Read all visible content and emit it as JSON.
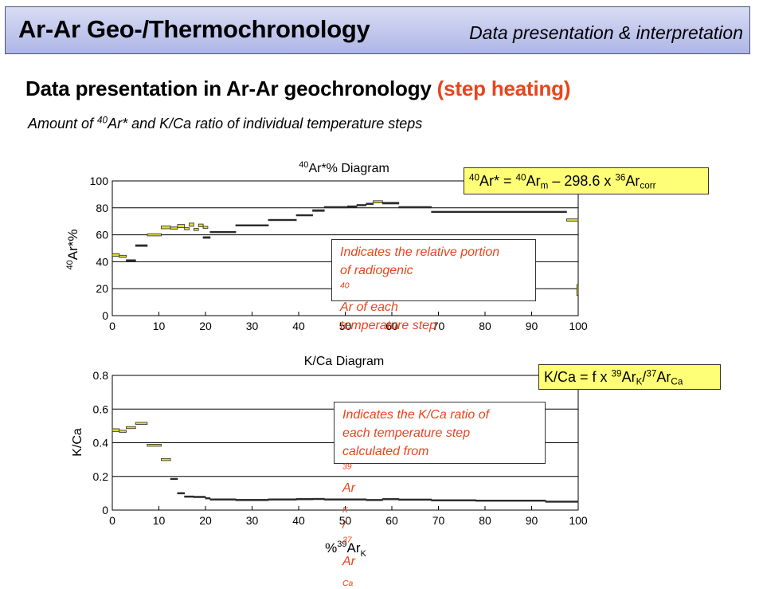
{
  "header": {
    "title": "Ar-Ar Geo-/Thermochronology",
    "subtitle": "Data presentation & interpretation"
  },
  "slide": {
    "heading_main": "Data presentation in Ar-Ar geochronology",
    "heading_highlight": "(step heating)",
    "subheading": {
      "pre": "Amount of ",
      "sup": "40",
      "post": "Ar* and K/Ca ratio of individual temperature steps"
    }
  },
  "colors": {
    "accent_red": "#e8451c",
    "banner_top": "#d8dcf4",
    "banner_bottom": "#aeb6e6",
    "formula_bg": "#ffff77",
    "step_fill": "#e0dd2a",
    "step_edge": "#2a2a2a"
  },
  "formula_ar": {
    "sup1": "40",
    "t1": "Ar* = ",
    "sup2": "40",
    "t2": "Ar",
    "sub1": "m",
    "t3": " – 298.6 x ",
    "sup3": "36",
    "t4": "Ar",
    "sub2": "corr"
  },
  "formula_kca": {
    "t1": "K/Ca = f x ",
    "sup1": "39",
    "t2": "Ar",
    "sub1": "K",
    "t3": "/",
    "sup2": "37",
    "t4": "Ar",
    "sub2": "Ca"
  },
  "note_ar": {
    "line1": "Indicates the relative portion",
    "line2_pre": "of radiogenic ",
    "line2_sup": "40",
    "line2_post": "Ar of each",
    "line3": "temperature step"
  },
  "note_kca": {
    "line1": "Indicates the K/Ca ratio of",
    "line2": "each temperature step",
    "line3_pre": "calculated from ",
    "line3_sup1": "39",
    "line3_mid": "Ar",
    "line3_sub1": "K",
    "line3_sep": " / ",
    "line3_sup2": "37",
    "line3_end": "Ar",
    "line3_sub2": "Ca"
  },
  "chart_data": [
    {
      "type": "step",
      "title": {
        "sup": "40",
        "text": "Ar*% Diagram"
      },
      "ylabel": {
        "sup": "40",
        "text": "Ar*%"
      },
      "xlabel": "",
      "xlim": [
        0,
        100
      ],
      "ylim": [
        0,
        100
      ],
      "xticks": [
        0,
        10,
        20,
        30,
        40,
        50,
        60,
        70,
        80,
        90,
        100
      ],
      "yticks": [
        0,
        20,
        40,
        60,
        80,
        100
      ],
      "ytick_labels": [
        "0",
        "20",
        "40",
        "60",
        "80",
        "100"
      ],
      "grid": "horizontal",
      "series": [
        {
          "steps": [
            {
              "x0": 0.0,
              "x1": 1.5,
              "y": 45.0,
              "err": 1.0
            },
            {
              "x0": 1.5,
              "x1": 3.0,
              "y": 44.0,
              "err": 0.8
            },
            {
              "x0": 3.0,
              "x1": 5.0,
              "y": 41.0,
              "err": 0.5
            },
            {
              "x0": 5.0,
              "x1": 7.5,
              "y": 52.0,
              "err": 0.6
            },
            {
              "x0": 7.5,
              "x1": 10.5,
              "y": 60.0,
              "err": 0.8
            },
            {
              "x0": 10.5,
              "x1": 12.5,
              "y": 65.5,
              "err": 1.0
            },
            {
              "x0": 12.5,
              "x1": 14.0,
              "y": 65.0,
              "err": 0.8
            },
            {
              "x0": 14.0,
              "x1": 15.5,
              "y": 66.5,
              "err": 1.2
            },
            {
              "x0": 15.5,
              "x1": 16.5,
              "y": 64.5,
              "err": 0.8
            },
            {
              "x0": 16.5,
              "x1": 17.5,
              "y": 67.5,
              "err": 1.2
            },
            {
              "x0": 17.5,
              "x1": 18.5,
              "y": 64.0,
              "err": 0.8
            },
            {
              "x0": 18.5,
              "x1": 19.5,
              "y": 67.0,
              "err": 1.0
            },
            {
              "x0": 19.5,
              "x1": 20.5,
              "y": 65.5,
              "err": 0.8
            },
            {
              "x0": 19.5,
              "x1": 21.0,
              "y": 58.0,
              "err": 0.6
            },
            {
              "x0": 21.0,
              "x1": 26.5,
              "y": 62.0,
              "err": 0.3
            },
            {
              "x0": 26.5,
              "x1": 33.5,
              "y": 67.0,
              "err": 0.4
            },
            {
              "x0": 33.5,
              "x1": 39.5,
              "y": 71.0,
              "err": 0.3
            },
            {
              "x0": 39.5,
              "x1": 43.0,
              "y": 74.5,
              "err": 0.3
            },
            {
              "x0": 43.0,
              "x1": 45.5,
              "y": 78.0,
              "err": 0.6
            },
            {
              "x0": 45.5,
              "x1": 50.5,
              "y": 80.5,
              "err": 0.3
            },
            {
              "x0": 50.5,
              "x1": 52.5,
              "y": 81.0,
              "err": 0.5
            },
            {
              "x0": 52.5,
              "x1": 54.5,
              "y": 82.0,
              "err": 0.5
            },
            {
              "x0": 54.5,
              "x1": 56.0,
              "y": 83.0,
              "err": 0.5
            },
            {
              "x0": 56.0,
              "x1": 58.0,
              "y": 84.5,
              "err": 0.8
            },
            {
              "x0": 58.0,
              "x1": 61.5,
              "y": 83.5,
              "err": 0.6
            },
            {
              "x0": 61.5,
              "x1": 68.5,
              "y": 80.5,
              "err": 0.4
            },
            {
              "x0": 68.5,
              "x1": 97.5,
              "y": 77.0,
              "err": 0.3
            },
            {
              "x0": 97.5,
              "x1": 100.0,
              "y": 71.0,
              "err": 0.8
            },
            {
              "x0": 99.7,
              "x1": 100.0,
              "y": 19.0,
              "err": 4.0
            }
          ]
        }
      ]
    },
    {
      "type": "step",
      "title": {
        "text": "K/Ca Diagram"
      },
      "ylabel": {
        "text": "K/Ca"
      },
      "xlabel": {
        "pre": "%",
        "sup": "39",
        "text": "Ar",
        "sub": "K"
      },
      "xlim": [
        0,
        100
      ],
      "ylim": [
        0,
        0.8
      ],
      "xticks": [
        0,
        10,
        20,
        30,
        40,
        50,
        60,
        70,
        80,
        90,
        100
      ],
      "yticks": [
        0,
        0.2,
        0.4,
        0.6,
        0.8
      ],
      "ytick_labels": [
        "0",
        "0.2",
        "0.4",
        "0.6",
        "0.8"
      ],
      "grid": "horizontal",
      "series": [
        {
          "steps": [
            {
              "x0": 0.0,
              "x1": 1.5,
              "y": 0.475,
              "err": 0.008
            },
            {
              "x0": 1.5,
              "x1": 3.0,
              "y": 0.468,
              "err": 0.006
            },
            {
              "x0": 3.0,
              "x1": 5.0,
              "y": 0.49,
              "err": 0.006
            },
            {
              "x0": 5.0,
              "x1": 7.5,
              "y": 0.515,
              "err": 0.006
            },
            {
              "x0": 7.5,
              "x1": 10.5,
              "y": 0.385,
              "err": 0.006
            },
            {
              "x0": 10.5,
              "x1": 12.5,
              "y": 0.3,
              "err": 0.006
            },
            {
              "x0": 12.5,
              "x1": 14.0,
              "y": 0.185,
              "err": 0.003
            },
            {
              "x0": 14.0,
              "x1": 15.5,
              "y": 0.1,
              "err": 0.004
            },
            {
              "x0": 15.5,
              "x1": 17.5,
              "y": 0.08,
              "err": 0.004
            },
            {
              "x0": 17.5,
              "x1": 20.0,
              "y": 0.078,
              "err": 0.004
            },
            {
              "x0": 20.0,
              "x1": 21.0,
              "y": 0.07,
              "err": 0.002
            },
            {
              "x0": 21.0,
              "x1": 26.5,
              "y": 0.063,
              "err": 0.002
            },
            {
              "x0": 26.5,
              "x1": 33.5,
              "y": 0.06,
              "err": 0.004
            },
            {
              "x0": 33.5,
              "x1": 39.5,
              "y": 0.063,
              "err": 0.002
            },
            {
              "x0": 39.5,
              "x1": 43.0,
              "y": 0.065,
              "err": 0.004
            },
            {
              "x0": 43.0,
              "x1": 45.5,
              "y": 0.066,
              "err": 0.002
            },
            {
              "x0": 45.5,
              "x1": 54.5,
              "y": 0.063,
              "err": 0.002
            },
            {
              "x0": 54.5,
              "x1": 58.0,
              "y": 0.06,
              "err": 0.002
            },
            {
              "x0": 58.0,
              "x1": 61.5,
              "y": 0.065,
              "err": 0.002
            },
            {
              "x0": 61.5,
              "x1": 68.5,
              "y": 0.062,
              "err": 0.002
            },
            {
              "x0": 68.5,
              "x1": 78.0,
              "y": 0.058,
              "err": 0.002
            },
            {
              "x0": 78.0,
              "x1": 93.0,
              "y": 0.056,
              "err": 0.002
            },
            {
              "x0": 93.0,
              "x1": 100.0,
              "y": 0.05,
              "err": 0.002
            }
          ]
        }
      ]
    }
  ]
}
